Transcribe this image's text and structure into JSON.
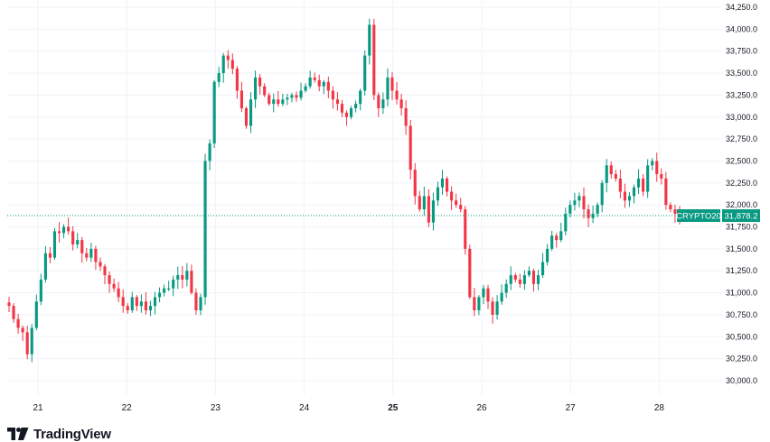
{
  "chart_data": {
    "type": "candlestick",
    "symbol": "CRYPTO20",
    "last_price": 31878.2,
    "last_price_label": "31,878.2",
    "y_ticks": [
      "34,250.0",
      "34,000.0",
      "33,750.0",
      "33,500.0",
      "33,250.0",
      "33,000.0",
      "32,750.0",
      "32,500.0",
      "32,250.0",
      "32,000.0",
      "31,750.0",
      "31,500.0",
      "31,250.0",
      "31,000.0",
      "30,750.0",
      "30,500.0",
      "30,250.0",
      "30,000.0"
    ],
    "x_ticks": [
      {
        "label": "21",
        "bold": false
      },
      {
        "label": "22",
        "bold": false
      },
      {
        "label": "23",
        "bold": false
      },
      {
        "label": "24",
        "bold": false
      },
      {
        "label": "25",
        "bold": true
      },
      {
        "label": "26",
        "bold": false
      },
      {
        "label": "27",
        "bold": false
      },
      {
        "label": "28",
        "bold": false
      }
    ],
    "ylim": [
      29850,
      34300
    ],
    "x_domain": [
      20.66,
      21.82
    ],
    "grid": true,
    "colors": {
      "up": "#089981",
      "down": "#f23645",
      "grid": "#f0f3fa",
      "last_line": "#089981"
    },
    "candles_close_path": [
      30850,
      30700,
      30600,
      30550,
      30300,
      30600,
      30900,
      31150,
      31450,
      31400,
      31700,
      31680,
      31750,
      31700,
      31550,
      31600,
      31450,
      31400,
      31500,
      31350,
      31300,
      31200,
      31100,
      31050,
      30950,
      30850,
      30800,
      30950,
      30850,
      30900,
      30800,
      30850,
      30950,
      31000,
      31050,
      31050,
      31150,
      31200,
      31150,
      31250,
      31000,
      30800,
      30950,
      32500,
      32700,
      33400,
      33500,
      33700,
      33650,
      33550,
      33300,
      33100,
      32900,
      33200,
      33450,
      33350,
      33250,
      33150,
      33200,
      33150,
      33200,
      33220,
      33250,
      33220,
      33300,
      33350,
      33450,
      33420,
      33350,
      33400,
      33300,
      33200,
      33150,
      33050,
      33000,
      33100,
      33150,
      33300,
      33700,
      34050,
      33250,
      33100,
      33200,
      33450,
      33300,
      33200,
      33100,
      32900,
      32400,
      32100,
      31950,
      32100,
      31800,
      32050,
      32200,
      32300,
      32150,
      32050,
      32000,
      31950,
      31500,
      30950,
      30800,
      30950,
      31050,
      30900,
      30750,
      30900,
      31000,
      31100,
      31200,
      31150,
      31100,
      31200,
      31250,
      31100,
      31200,
      31350,
      31500,
      31650,
      31600,
      31700,
      31900,
      32000,
      32050,
      32100,
      31950,
      31850,
      31900,
      32000,
      32250,
      32450,
      32350,
      32300,
      32150,
      32050,
      32100,
      32200,
      32300,
      32150,
      32450,
      32500,
      32350,
      32300,
      32000,
      31950,
      31900,
      31880
    ]
  },
  "brand": {
    "name": "TradingView"
  }
}
